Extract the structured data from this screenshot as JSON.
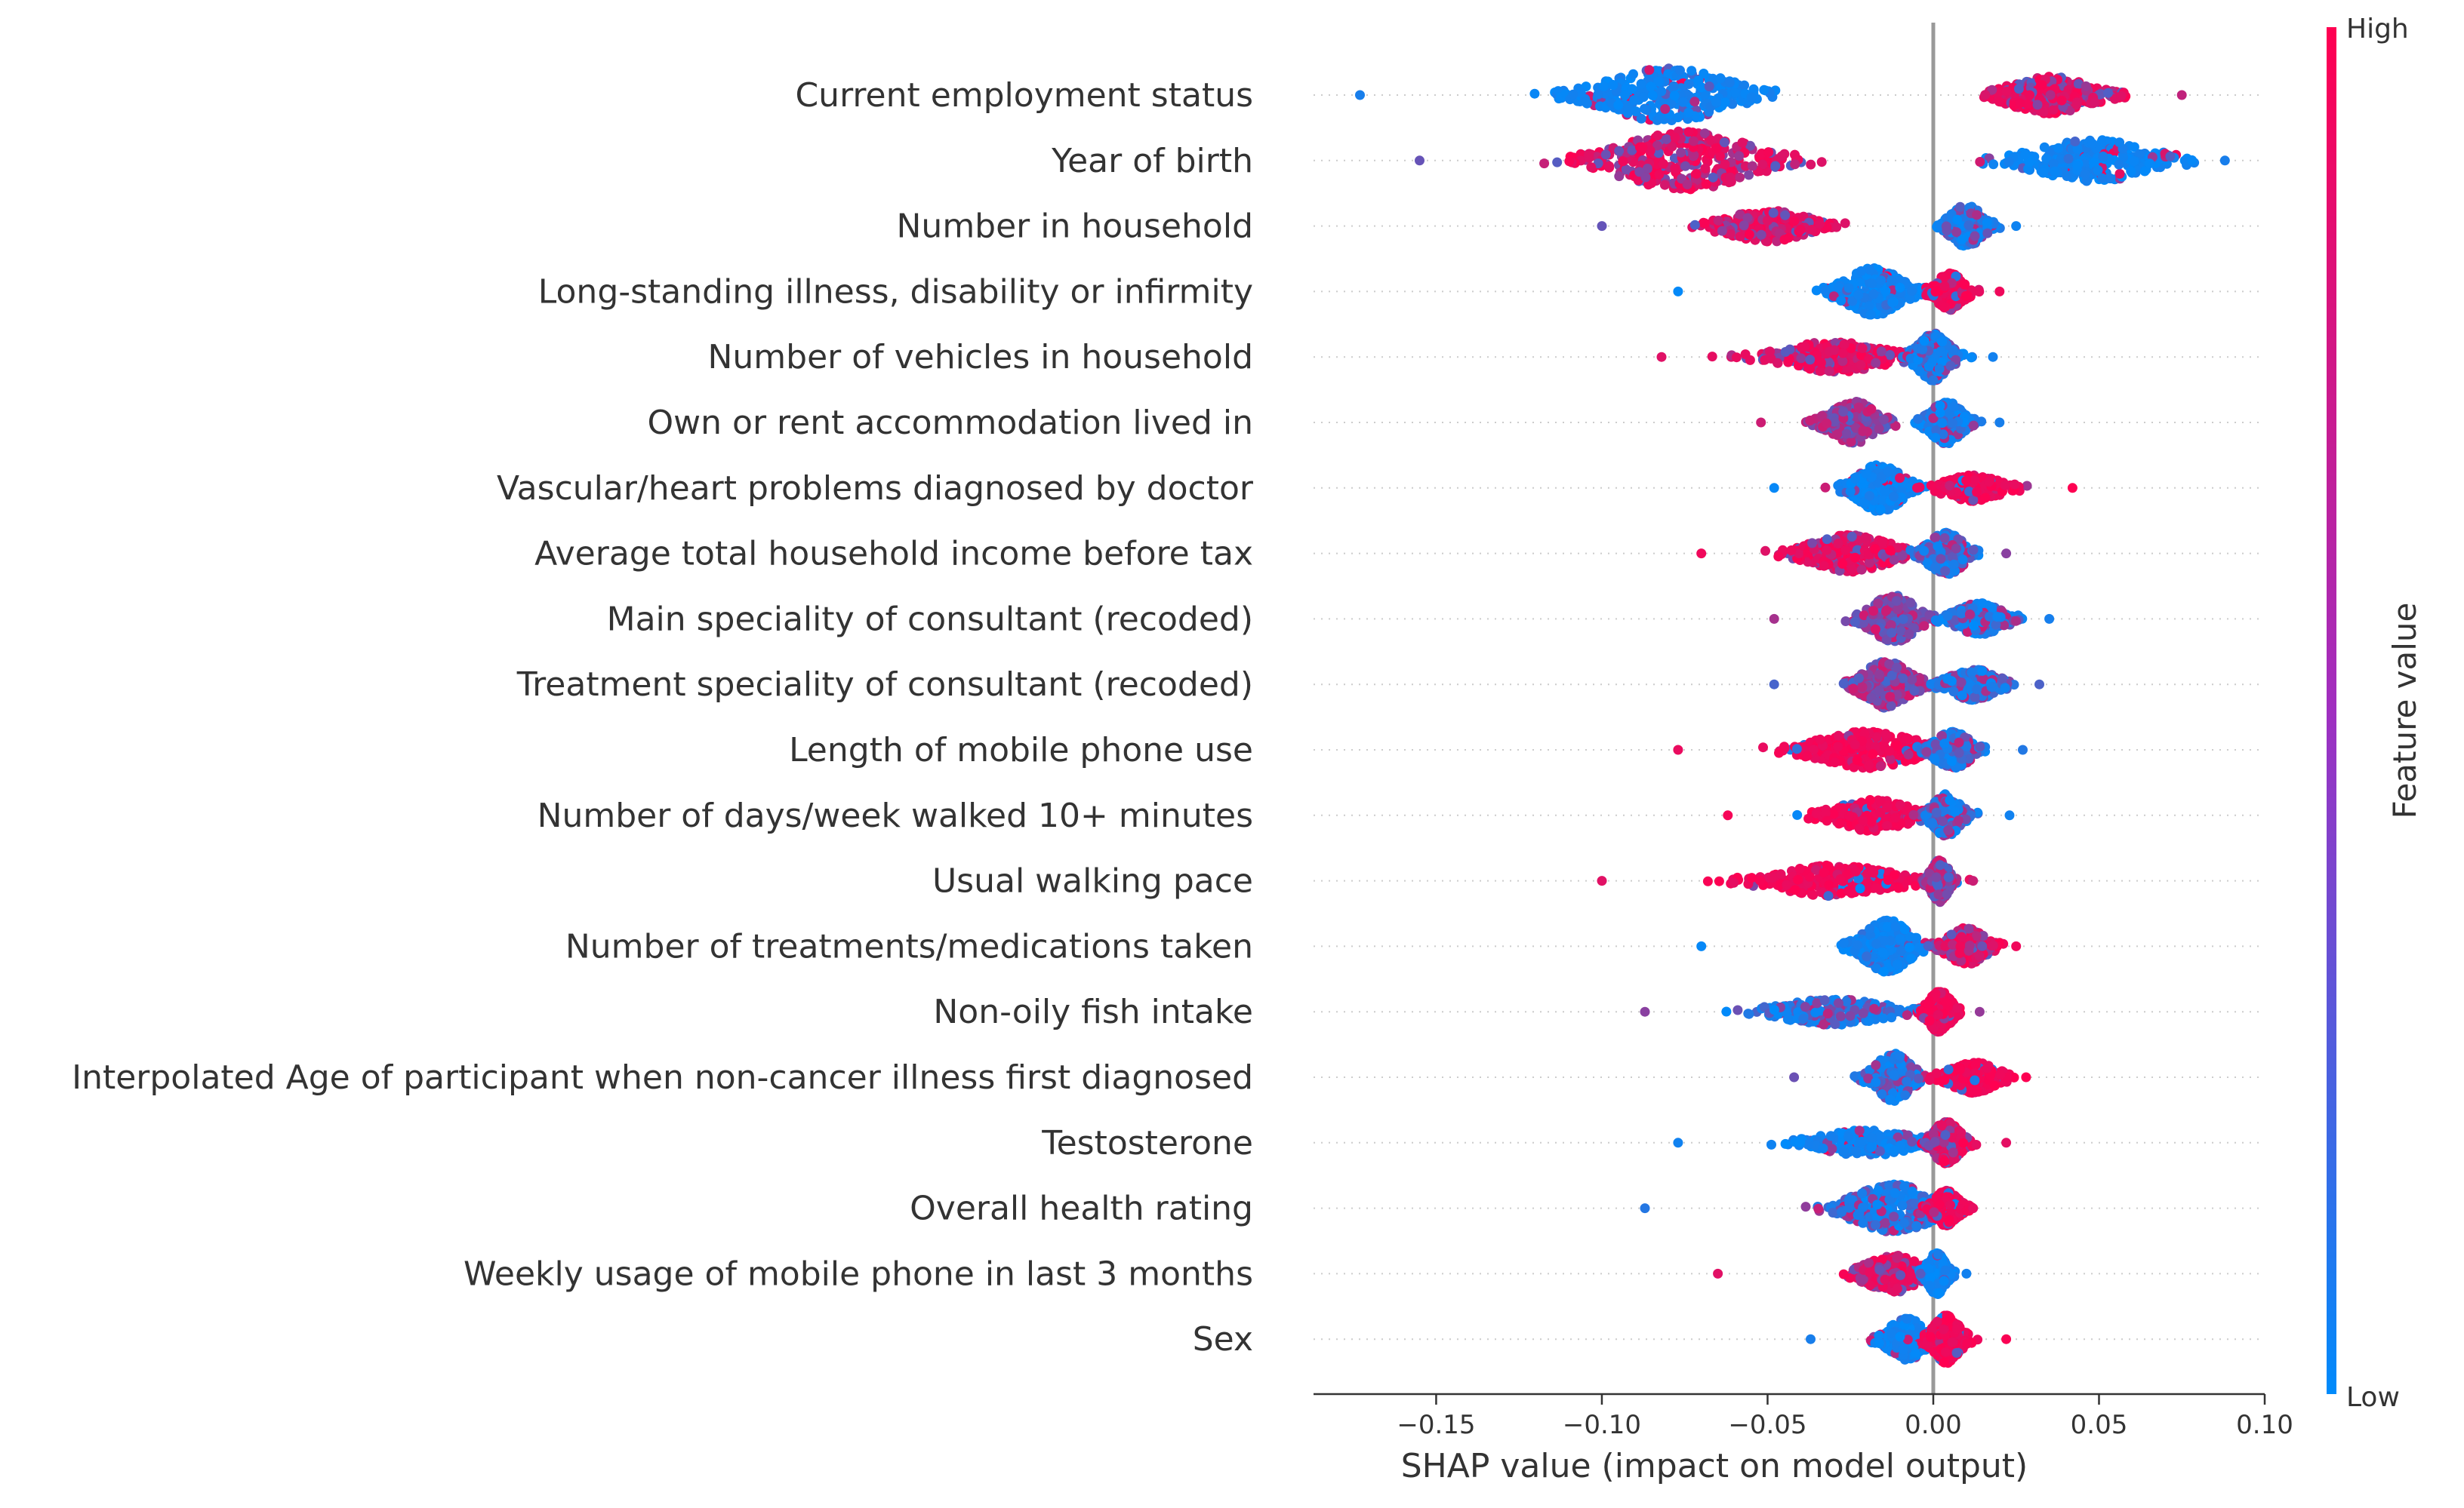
{
  "chart_data": {
    "type": "scatter",
    "subtype": "shap-beeswarm",
    "xlabel": "SHAP value (impact on model output)",
    "xlim": [
      -0.187,
      0.1
    ],
    "x_ticks": [
      {
        "value": -0.15,
        "label": "−0.15"
      },
      {
        "value": -0.1,
        "label": "−0.10"
      },
      {
        "value": -0.05,
        "label": "−0.05"
      },
      {
        "value": 0.0,
        "label": "0.00"
      },
      {
        "value": 0.05,
        "label": "0.05"
      },
      {
        "value": 0.1,
        "label": "0.10"
      }
    ],
    "colorbar": {
      "title": "Feature value",
      "high_label": "High",
      "low_label": "Low",
      "high_color": "#ff0051",
      "low_color": "#008bfb"
    },
    "features": [
      {
        "name": "Current employment status",
        "min": -0.173,
        "max": 0.075,
        "left_cluster": {
          "center": -0.08,
          "spread": 0.028,
          "width": 0.9,
          "color": "low"
        },
        "right_cluster": {
          "center": 0.035,
          "spread": 0.018,
          "width": 0.6,
          "color": "high-mix"
        }
      },
      {
        "name": "Year of birth",
        "min": -0.155,
        "max": 0.088,
        "left_cluster": {
          "center": -0.075,
          "spread": 0.03,
          "width": 1.0,
          "color": "high-mix"
        },
        "right_cluster": {
          "center": 0.048,
          "spread": 0.025,
          "width": 0.7,
          "color": "low"
        }
      },
      {
        "name": "Number in household",
        "min": -0.1,
        "max": 0.025,
        "left_cluster": {
          "center": -0.05,
          "spread": 0.018,
          "width": 0.5,
          "color": "high-mix"
        },
        "right_cluster": {
          "center": 0.01,
          "spread": 0.007,
          "width": 0.7,
          "color": "low-mix"
        }
      },
      {
        "name": "Long-standing illness, disability or infirmity",
        "min": -0.077,
        "max": 0.02,
        "left_cluster": {
          "center": -0.018,
          "spread": 0.012,
          "width": 0.8,
          "color": "low"
        },
        "right_cluster": {
          "center": 0.005,
          "spread": 0.006,
          "width": 0.6,
          "color": "high"
        }
      },
      {
        "name": "Number of vehicles in household",
        "min": -0.082,
        "max": 0.018,
        "left_cluster": {
          "center": -0.03,
          "spread": 0.022,
          "width": 0.5,
          "color": "high-mix"
        },
        "right_cluster": {
          "center": 0.0,
          "spread": 0.007,
          "width": 0.8,
          "color": "low-mix"
        }
      },
      {
        "name": "Own or rent accommodation lived in",
        "min": -0.052,
        "max": 0.02,
        "left_cluster": {
          "center": -0.024,
          "spread": 0.01,
          "width": 0.7,
          "color": "mix"
        },
        "right_cluster": {
          "center": 0.004,
          "spread": 0.007,
          "width": 0.7,
          "color": "low-mix"
        }
      },
      {
        "name": "Vascular/heart problems diagnosed by doctor",
        "min": -0.048,
        "max": 0.042,
        "left_cluster": {
          "center": -0.016,
          "spread": 0.01,
          "width": 0.8,
          "color": "low"
        },
        "right_cluster": {
          "center": 0.012,
          "spread": 0.012,
          "width": 0.4,
          "color": "high"
        }
      },
      {
        "name": "Average total household income before tax",
        "min": -0.07,
        "max": 0.022,
        "left_cluster": {
          "center": -0.025,
          "spread": 0.018,
          "width": 0.6,
          "color": "high-mix"
        },
        "right_cluster": {
          "center": 0.004,
          "spread": 0.008,
          "width": 0.7,
          "color": "low-mix"
        }
      },
      {
        "name": "Main speciality of consultant (recoded)",
        "min": -0.048,
        "max": 0.035,
        "left_cluster": {
          "center": -0.012,
          "spread": 0.01,
          "width": 0.8,
          "color": "mix"
        },
        "right_cluster": {
          "center": 0.014,
          "spread": 0.01,
          "width": 0.5,
          "color": "low-mix"
        }
      },
      {
        "name": "Treatment speciality of consultant (recoded)",
        "min": -0.048,
        "max": 0.032,
        "left_cluster": {
          "center": -0.014,
          "spread": 0.01,
          "width": 0.8,
          "color": "mix"
        },
        "right_cluster": {
          "center": 0.012,
          "spread": 0.01,
          "width": 0.5,
          "color": "low-mix"
        }
      },
      {
        "name": "Length of mobile phone use",
        "min": -0.077,
        "max": 0.027,
        "left_cluster": {
          "center": -0.02,
          "spread": 0.022,
          "width": 0.6,
          "color": "high"
        },
        "right_cluster": {
          "center": 0.006,
          "spread": 0.008,
          "width": 0.6,
          "color": "low-mix"
        }
      },
      {
        "name": "Number of days/week walked 10+ minutes",
        "min": -0.062,
        "max": 0.023,
        "left_cluster": {
          "center": -0.018,
          "spread": 0.016,
          "width": 0.5,
          "color": "high"
        },
        "right_cluster": {
          "center": 0.004,
          "spread": 0.006,
          "width": 0.7,
          "color": "low-mix"
        }
      },
      {
        "name": "Usual walking pace",
        "min": -0.1,
        "max": 0.012,
        "left_cluster": {
          "center": -0.03,
          "spread": 0.025,
          "width": 0.5,
          "color": "high"
        },
        "right_cluster": {
          "center": 0.002,
          "spread": 0.004,
          "width": 0.7,
          "color": "mix"
        }
      },
      {
        "name": "Number of treatments/medications taken",
        "min": -0.07,
        "max": 0.025,
        "left_cluster": {
          "center": -0.014,
          "spread": 0.01,
          "width": 0.9,
          "color": "low"
        },
        "right_cluster": {
          "center": 0.01,
          "spread": 0.008,
          "width": 0.6,
          "color": "high-mix"
        }
      },
      {
        "name": "Non-oily fish intake",
        "min": -0.087,
        "max": 0.014,
        "left_cluster": {
          "center": -0.03,
          "spread": 0.022,
          "width": 0.4,
          "color": "low-mix"
        },
        "right_cluster": {
          "center": 0.002,
          "spread": 0.005,
          "width": 0.7,
          "color": "high"
        }
      },
      {
        "name": "Interpolated Age of participant when non-cancer illness first diagnosed",
        "min": -0.042,
        "max": 0.028,
        "left_cluster": {
          "center": -0.012,
          "spread": 0.008,
          "width": 0.8,
          "color": "low-mix"
        },
        "right_cluster": {
          "center": 0.012,
          "spread": 0.01,
          "width": 0.5,
          "color": "high"
        }
      },
      {
        "name": "Testosterone",
        "min": -0.077,
        "max": 0.022,
        "left_cluster": {
          "center": -0.02,
          "spread": 0.02,
          "width": 0.4,
          "color": "low"
        },
        "right_cluster": {
          "center": 0.004,
          "spread": 0.006,
          "width": 0.7,
          "color": "high-mix"
        }
      },
      {
        "name": "Overall health rating",
        "min": -0.087,
        "max": 0.012,
        "left_cluster": {
          "center": -0.012,
          "spread": 0.018,
          "width": 0.8,
          "color": "low-mix"
        },
        "right_cluster": {
          "center": 0.004,
          "spread": 0.005,
          "width": 0.6,
          "color": "high"
        }
      },
      {
        "name": "Weekly usage of mobile phone in last 3 months",
        "min": -0.065,
        "max": 0.01,
        "left_cluster": {
          "center": -0.012,
          "spread": 0.012,
          "width": 0.6,
          "color": "high-mix"
        },
        "right_cluster": {
          "center": 0.001,
          "spread": 0.004,
          "width": 0.7,
          "color": "low"
        }
      },
      {
        "name": "Sex",
        "min": -0.037,
        "max": 0.022,
        "left_cluster": {
          "center": -0.008,
          "spread": 0.008,
          "width": 0.7,
          "color": "low"
        },
        "right_cluster": {
          "center": 0.004,
          "spread": 0.006,
          "width": 0.8,
          "color": "high"
        }
      }
    ]
  }
}
